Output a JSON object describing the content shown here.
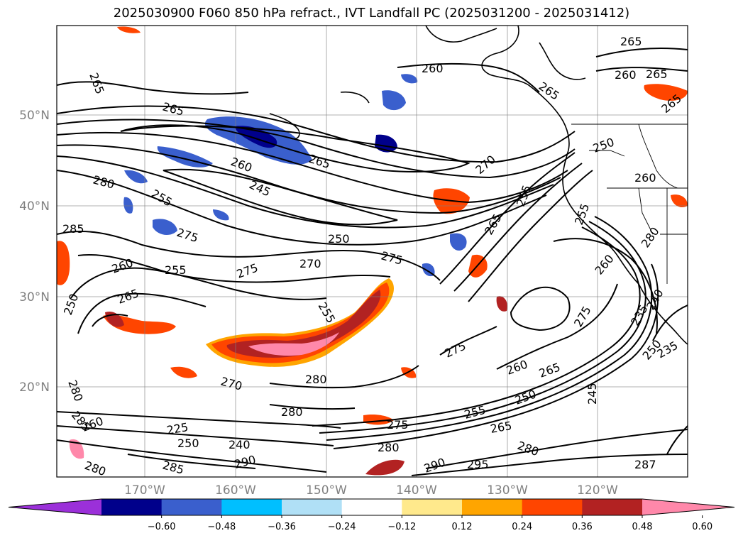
{
  "title": "2025030900 F060 850 hPa refract., IVT Landfall PC (2025031200 - 2025031412)",
  "lat_labels": [
    "50°N",
    "40°N",
    "30°N",
    "20°N"
  ],
  "lon_labels": [
    "170°W",
    "160°W",
    "150°W",
    "140°W",
    "130°W",
    "120°W"
  ],
  "colorbar": {
    "ticks": [
      "−0.60",
      "−0.48",
      "−0.36",
      "−0.24",
      "−0.12",
      "0.12",
      "0.24",
      "0.36",
      "0.48",
      "0.60"
    ],
    "colors": [
      "#9b30d9",
      "#00008b",
      "#3a5fcd",
      "#00bfff",
      "#b0e0f6",
      "#ffffff",
      "#ffe98c",
      "#ffa500",
      "#ff4500",
      "#b22222",
      "#ff88aa"
    ]
  },
  "contour_labels": [
    "265",
    "260",
    "265",
    "265",
    "260",
    "265",
    "250",
    "265",
    "260",
    "265",
    "260",
    "280",
    "255",
    "245",
    "270",
    "255",
    "285",
    "275",
    "250",
    "275",
    "260",
    "255",
    "270",
    "255",
    "265",
    "275",
    "250",
    "265",
    "280",
    "275",
    "280",
    "275",
    "250",
    "235",
    "255",
    "260",
    "240",
    "235",
    "245",
    "265",
    "260",
    "250",
    "280",
    "280",
    "270",
    "285",
    "260",
    "280",
    "285",
    "290",
    "250",
    "275",
    "290",
    "295",
    "287",
    "265",
    "280",
    "280",
    "255",
    "225",
    "240",
    "265"
  ]
}
